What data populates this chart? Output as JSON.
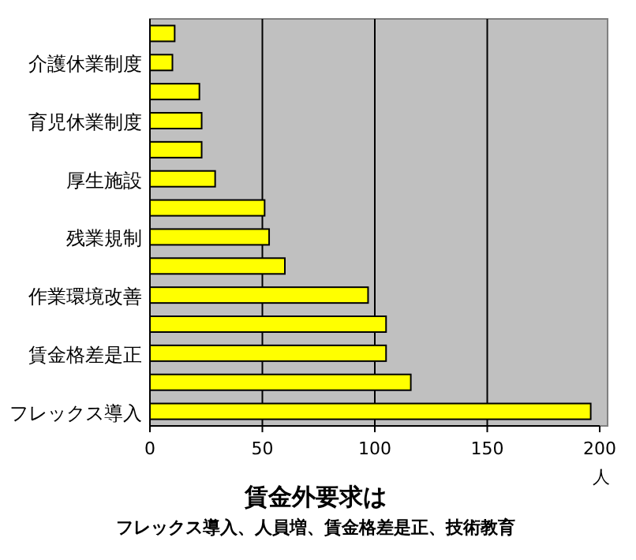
{
  "chart_data": {
    "type": "bar",
    "orientation": "horizontal",
    "title": "賃金外要求は",
    "subtitle": "フレックス導入、人員増、賃金格差是正、技術教育",
    "xlabel": "人",
    "categories": [
      null,
      "介護休業制度",
      null,
      "育児休業制度",
      null,
      "厚生施設",
      null,
      "残業規制",
      null,
      "作業環境改善",
      null,
      "賃金格差是正",
      null,
      "フレックス導入"
    ],
    "values": [
      11,
      10,
      22,
      23,
      23,
      29,
      51,
      53,
      60,
      97,
      105,
      105,
      116,
      196
    ],
    "color": "#ffff00",
    "xlim": [
      0,
      200
    ],
    "xticks": [
      0,
      50,
      100,
      150,
      200
    ],
    "grid": "x"
  }
}
